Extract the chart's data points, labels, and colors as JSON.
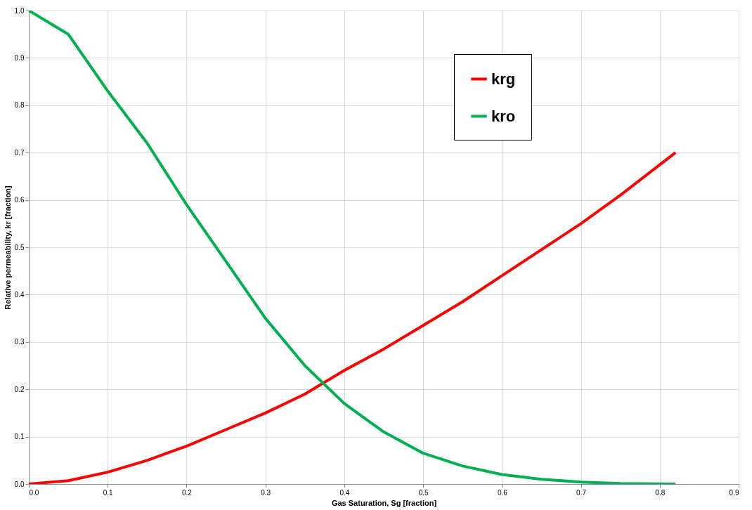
{
  "chart_data": {
    "type": "line",
    "xlabel": "Gas Saturation, Sg [fraction]",
    "ylabel": "Relative permeability, kr [fraction]",
    "xlim": [
      0,
      0.9
    ],
    "ylim": [
      0,
      1
    ],
    "xticks": [
      {
        "value": 0,
        "label": "0.0"
      },
      {
        "value": 0.1,
        "label": "0.1"
      },
      {
        "value": 0.2,
        "label": "0.2"
      },
      {
        "value": 0.3,
        "label": "0.3"
      },
      {
        "value": 0.4,
        "label": "0.4"
      },
      {
        "value": 0.5,
        "label": "0.5"
      },
      {
        "value": 0.6,
        "label": "0.6"
      },
      {
        "value": 0.7,
        "label": "0.7"
      },
      {
        "value": 0.8,
        "label": "0.8"
      },
      {
        "value": 0.9,
        "label": "0.9"
      }
    ],
    "yticks": [
      {
        "value": 0,
        "label": "0.0"
      },
      {
        "value": 0.1,
        "label": "0.1"
      },
      {
        "value": 0.2,
        "label": "0.2"
      },
      {
        "value": 0.3,
        "label": "0.3"
      },
      {
        "value": 0.4,
        "label": "0.4"
      },
      {
        "value": 0.5,
        "label": "0.5"
      },
      {
        "value": 0.6,
        "label": "0.6"
      },
      {
        "value": 0.7,
        "label": "0.7"
      },
      {
        "value": 0.8,
        "label": "0.8"
      },
      {
        "value": 0.9,
        "label": "0.9"
      },
      {
        "value": 1,
        "label": "1.0"
      }
    ],
    "x": [
      0,
      0.05,
      0.1,
      0.15,
      0.2,
      0.25,
      0.3,
      0.35,
      0.4,
      0.45,
      0.5,
      0.55,
      0.6,
      0.65,
      0.7,
      0.75,
      0.82
    ],
    "series": [
      {
        "name": "krg",
        "color": "#ff0000",
        "values": [
          0,
          0.007,
          0.025,
          0.05,
          0.08,
          0.115,
          0.15,
          0.19,
          0.24,
          0.285,
          0.335,
          0.385,
          0.44,
          0.495,
          0.55,
          0.61,
          0.7
        ]
      },
      {
        "name": "kro",
        "color": "#00b050",
        "values": [
          1,
          0.95,
          0.83,
          0.72,
          0.59,
          0.47,
          0.35,
          0.25,
          0.17,
          0.11,
          0.065,
          0.038,
          0.02,
          0.01,
          0.004,
          0.001,
          0
        ]
      }
    ],
    "grid": true,
    "legend": "top right",
    "marker": "none",
    "line_style": "solid"
  }
}
